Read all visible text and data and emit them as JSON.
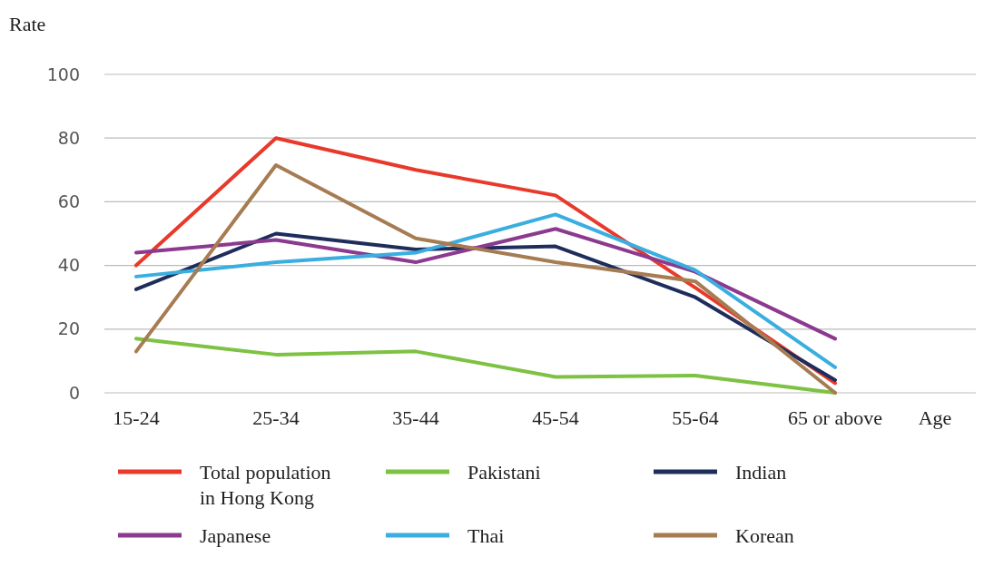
{
  "chart_data": {
    "type": "line",
    "ylabel": "Rate",
    "xlabel": "Age",
    "categories": [
      "15-24",
      "25-34",
      "35-44",
      "45-54",
      "55-64",
      "65 or above"
    ],
    "ylim": [
      0,
      100
    ],
    "yticks": [
      0,
      20,
      40,
      60,
      80,
      100
    ],
    "grid": "y",
    "legend": "bottom",
    "marker": "none",
    "line_style": "solid",
    "series": [
      {
        "name": "Total population in Hong Kong",
        "color": "#e8392b",
        "values": [
          40,
          80,
          70,
          62,
          33,
          3
        ]
      },
      {
        "name": "Pakistani",
        "color": "#7dc242",
        "values": [
          17,
          12,
          13,
          5,
          5.4,
          0
        ]
      },
      {
        "name": "Indian",
        "color": "#1f2d5c",
        "values": [
          32.5,
          50,
          45,
          46,
          30,
          4
        ]
      },
      {
        "name": "Japanese",
        "color": "#8b3a8f",
        "values": [
          44,
          48,
          41,
          51.5,
          38,
          17
        ]
      },
      {
        "name": "Thai",
        "color": "#3aaee0",
        "values": [
          36.5,
          41,
          44,
          56,
          38.5,
          8
        ]
      },
      {
        "name": "Korean",
        "color": "#a67c52",
        "values": [
          13,
          71.5,
          48.5,
          41,
          35,
          0
        ]
      }
    ]
  }
}
